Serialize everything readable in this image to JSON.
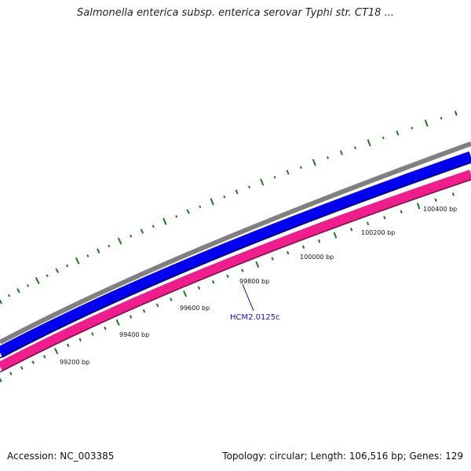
{
  "title": "Salmonella enterica subsp. enterica serovar Typhi str. CT18 ...",
  "footer": {
    "accession": "Accession: NC_003385",
    "stats": "Topology: circular; Length: 106,516 bp; Genes: 129"
  },
  "map": {
    "tick_labels": [
      "99200 bp",
      "99400 bp",
      "99600 bp",
      "99800 bp",
      "100000 bp",
      "100200 bp",
      "100400 bp"
    ],
    "gene_label": "HCM2.0125c",
    "colors": {
      "backbone": "#808080",
      "forward_strand": "#0000ee",
      "reverse_strand": "#ee1e8c",
      "gc_ticks": "#1a7a1a",
      "gene_label": "#1111cc"
    }
  }
}
